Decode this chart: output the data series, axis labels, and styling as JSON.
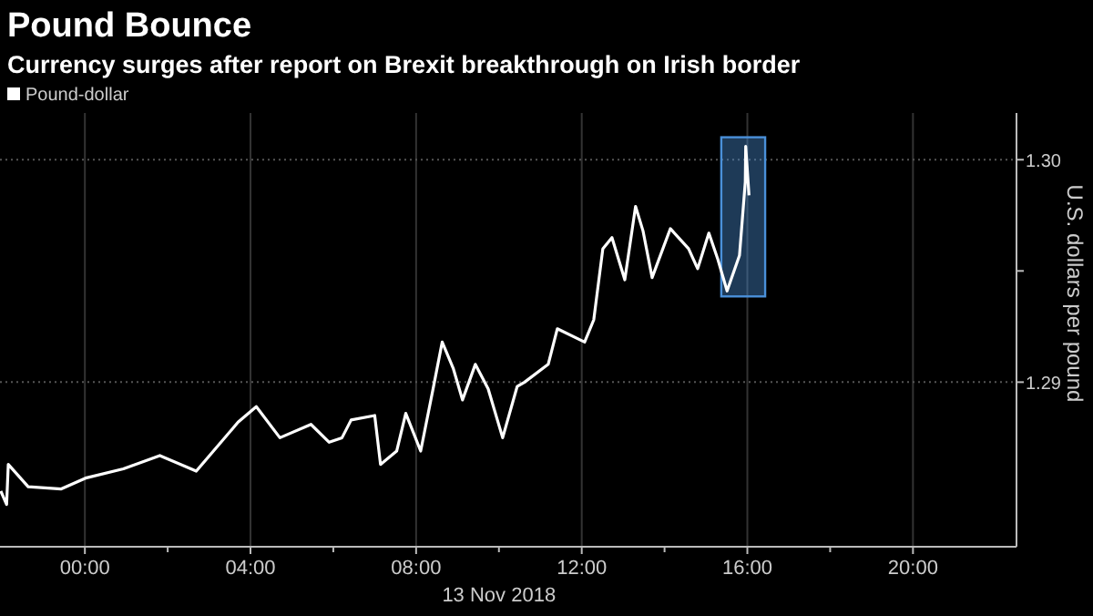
{
  "chart_data": {
    "type": "line",
    "title": "Pound Bounce",
    "subtitle": "Currency surges after report on Brexit breakthrough on Irish border",
    "xlabel": "13 Nov 2018",
    "ylabel": "U.S. dollars per pound",
    "xlim": [
      -2.05,
      22.5
    ],
    "ylim": [
      1.2826,
      1.3021
    ],
    "xticks": [
      {
        "value": 0,
        "label": "00:00"
      },
      {
        "value": 2,
        "label": null
      },
      {
        "value": 4,
        "label": "04:00"
      },
      {
        "value": 6,
        "label": null
      },
      {
        "value": 8,
        "label": "08:00"
      },
      {
        "value": 10,
        "label": null
      },
      {
        "value": 12,
        "label": "12:00"
      },
      {
        "value": 14,
        "label": null
      },
      {
        "value": 16,
        "label": "16:00"
      },
      {
        "value": 18,
        "label": null
      },
      {
        "value": 20,
        "label": "20:00"
      }
    ],
    "yticks": [
      {
        "value": 1.29,
        "label": "1.29"
      },
      {
        "value": 1.295,
        "label": null
      },
      {
        "value": 1.3,
        "label": "1.30"
      }
    ],
    "grid": true,
    "legend": "top left",
    "bands": [
      {
        "axis": "x",
        "from": 15.37,
        "to": 16.43,
        "color": "#4a90d9"
      }
    ],
    "x": [
      -2.03,
      -1.89,
      -1.85,
      -1.37,
      -0.57,
      0.04,
      0.93,
      1.81,
      2.69,
      3.7,
      4.14,
      4.71,
      5.46,
      5.9,
      6.21,
      6.43,
      7.0,
      7.14,
      7.53,
      7.75,
      8.11,
      8.41,
      8.63,
      8.9,
      9.12,
      9.43,
      9.74,
      10.09,
      10.44,
      10.62,
      11.19,
      11.41,
      12.07,
      12.29,
      12.51,
      12.73,
      13.04,
      13.3,
      13.48,
      13.7,
      14.14,
      14.58,
      14.8,
      15.07,
      15.29,
      15.51,
      15.81,
      15.95,
      15.96,
      16.04
    ],
    "series": [
      {
        "name": "Pound-dollar",
        "color": "#ffffff",
        "values": [
          1.2851,
          1.2845,
          1.2863,
          1.2853,
          1.2852,
          1.2857,
          1.2861,
          1.2867,
          1.286,
          1.2882,
          1.2889,
          1.2875,
          1.2881,
          1.2873,
          1.2875,
          1.2883,
          1.2885,
          1.2863,
          1.2869,
          1.2886,
          1.2869,
          1.2897,
          1.2918,
          1.2906,
          1.2892,
          1.2908,
          1.2897,
          1.2875,
          1.2898,
          1.29,
          1.2908,
          1.2924,
          1.2918,
          1.2928,
          1.296,
          1.2965,
          1.2946,
          1.2979,
          1.2968,
          1.2947,
          1.2969,
          1.296,
          1.2951,
          1.2967,
          1.2955,
          1.2941,
          1.2957,
          1.299,
          1.3006,
          1.2984
        ]
      }
    ]
  }
}
